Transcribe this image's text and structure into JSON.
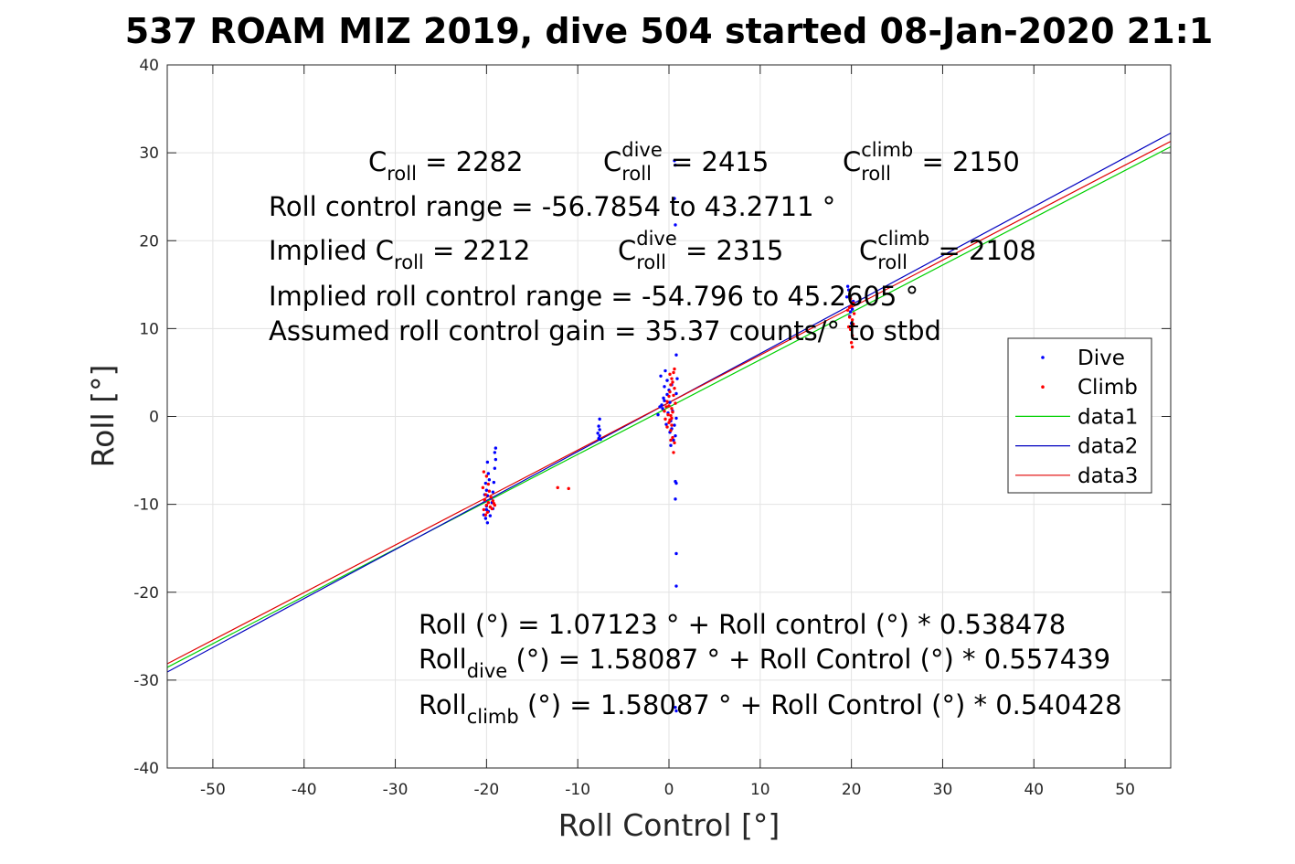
{
  "chart_data": {
    "type": "scatter",
    "title": "537 ROAM MIZ 2019, dive 504 started 08-Jan-2020 21:1",
    "xlabel": "Roll Control [°]",
    "ylabel": "Roll [°]",
    "xlim": [
      -55,
      55
    ],
    "ylim": [
      -40,
      40
    ],
    "xticks": [
      -50,
      -40,
      -30,
      -20,
      -10,
      0,
      10,
      20,
      30,
      40,
      50
    ],
    "yticks": [
      -40,
      -30,
      -20,
      -10,
      0,
      10,
      20,
      30,
      40
    ],
    "grid": true,
    "legend_position": "right",
    "series": [
      {
        "name": "Dive",
        "kind": "points",
        "color": "#0000ff",
        "points": [
          [
            -19.9,
            -5.2
          ],
          [
            -19.8,
            -6.5
          ],
          [
            -20.1,
            -7.6
          ],
          [
            -20.0,
            -8.4
          ],
          [
            -19.9,
            -9.0
          ],
          [
            -20.2,
            -9.6
          ],
          [
            -20.0,
            -10.2
          ],
          [
            -19.8,
            -10.8
          ],
          [
            -20.3,
            -11.2
          ],
          [
            -20.1,
            -11.6
          ],
          [
            -19.9,
            -12.1
          ],
          [
            -19.5,
            -9.3
          ],
          [
            -19.3,
            -8.6
          ],
          [
            -19.2,
            -7.5
          ],
          [
            -19.1,
            -5.9
          ],
          [
            -19.0,
            -4.9
          ],
          [
            -19.1,
            -4.1
          ],
          [
            -19.0,
            -3.6
          ],
          [
            -19.3,
            -10.5
          ],
          [
            -19.6,
            -11.3
          ],
          [
            -20.2,
            -8.9
          ],
          [
            -19.7,
            -7.2
          ],
          [
            -20.0,
            -10.6
          ],
          [
            -19.4,
            -9.8
          ],
          [
            -7.6,
            -0.3
          ],
          [
            -7.7,
            -1.1
          ],
          [
            -7.6,
            -1.5
          ],
          [
            -7.8,
            -1.9
          ],
          [
            -7.6,
            -2.2
          ],
          [
            -7.7,
            -2.5
          ],
          [
            -7.5,
            -2.6
          ],
          [
            -1.2,
            0.2
          ],
          [
            -0.8,
            1.3
          ],
          [
            -0.6,
            2.1
          ],
          [
            -0.5,
            3.4
          ],
          [
            -0.9,
            4.6
          ],
          [
            -0.4,
            5.2
          ],
          [
            -0.2,
            4.1
          ],
          [
            0.0,
            3.0
          ],
          [
            0.1,
            1.6
          ],
          [
            -0.1,
            0.4
          ],
          [
            0.2,
            -0.5
          ],
          [
            0.3,
            -1.4
          ],
          [
            0.5,
            -2.7
          ],
          [
            0.2,
            -3.3
          ],
          [
            0.7,
            -2.2
          ],
          [
            0.8,
            7.0
          ],
          [
            0.9,
            4.3
          ],
          [
            0.8,
            2.6
          ],
          [
            0.8,
            -0.2
          ],
          [
            0.7,
            -7.4
          ],
          [
            0.8,
            -7.6
          ],
          [
            0.7,
            -9.4
          ],
          [
            0.8,
            -15.6
          ],
          [
            0.8,
            -19.3
          ],
          [
            0.7,
            21.8
          ],
          [
            0.6,
            24.8
          ],
          [
            0.7,
            28.6
          ],
          [
            0.6,
            29.1
          ],
          [
            0.8,
            -33.5
          ],
          [
            0.7,
            -33.1
          ],
          [
            -0.3,
            -0.9
          ],
          [
            -0.7,
            0.9
          ],
          [
            -0.2,
            2.5
          ],
          [
            0.1,
            -1.8
          ],
          [
            0.4,
            0.6
          ],
          [
            -0.5,
            1.8
          ],
          [
            0.3,
            3.6
          ],
          [
            -1.0,
            1.1
          ],
          [
            0.6,
            -1.0
          ],
          [
            19.5,
            13.6
          ],
          [
            19.7,
            14.4
          ],
          [
            19.6,
            14.8
          ],
          [
            20.1,
            12.2
          ],
          [
            19.8,
            11.4
          ],
          [
            20.2,
            13.1
          ],
          [
            20.0,
            10.6
          ],
          [
            19.9,
            11.9
          ]
        ]
      },
      {
        "name": "Climb",
        "kind": "points",
        "color": "#ff0000",
        "points": [
          [
            -20.3,
            -6.3
          ],
          [
            -20.0,
            -6.8
          ],
          [
            -19.8,
            -7.7
          ],
          [
            -20.4,
            -8.1
          ],
          [
            -19.7,
            -8.5
          ],
          [
            -20.1,
            -8.9
          ],
          [
            -19.5,
            -9.2
          ],
          [
            -20.2,
            -9.5
          ],
          [
            -19.8,
            -9.8
          ],
          [
            -20.0,
            -10.1
          ],
          [
            -19.6,
            -10.3
          ],
          [
            -20.3,
            -10.6
          ],
          [
            -19.9,
            -10.9
          ],
          [
            -20.1,
            -11.2
          ],
          [
            -19.3,
            -9.6
          ],
          [
            -19.1,
            -10.1
          ],
          [
            -19.4,
            -10.5
          ],
          [
            -19.2,
            -9.9
          ],
          [
            -12.2,
            -8.1
          ],
          [
            -11.0,
            -8.2
          ],
          [
            -0.5,
            0.6
          ],
          [
            -0.3,
            1.1
          ],
          [
            -0.2,
            1.7
          ],
          [
            0.0,
            2.3
          ],
          [
            0.1,
            2.8
          ],
          [
            0.2,
            3.6
          ],
          [
            0.3,
            4.3
          ],
          [
            0.5,
            5.0
          ],
          [
            0.4,
            3.9
          ],
          [
            0.6,
            3.2
          ],
          [
            -0.1,
            0.2
          ],
          [
            0.1,
            -0.4
          ],
          [
            0.3,
            -1.0
          ],
          [
            0.2,
            -1.6
          ],
          [
            0.0,
            -0.7
          ],
          [
            0.4,
            -2.4
          ],
          [
            0.6,
            -3.0
          ],
          [
            0.5,
            -4.1
          ],
          [
            0.2,
            -2.7
          ],
          [
            -0.4,
            -0.3
          ],
          [
            0.3,
            0.9
          ],
          [
            0.7,
            1.5
          ],
          [
            0.5,
            2.4
          ],
          [
            -0.2,
            -1.2
          ],
          [
            0.1,
            4.8
          ],
          [
            0.6,
            5.4
          ],
          [
            0.2,
            0.1
          ],
          [
            0.4,
            0.5
          ],
          [
            0.0,
            1.2
          ],
          [
            0.3,
            -0.2
          ],
          [
            19.6,
            12.1
          ],
          [
            19.8,
            11.3
          ],
          [
            20.0,
            12.6
          ],
          [
            20.2,
            10.5
          ],
          [
            19.9,
            9.9
          ],
          [
            20.1,
            9.2
          ],
          [
            20.0,
            8.4
          ],
          [
            20.1,
            7.9
          ],
          [
            19.7,
            10.2
          ],
          [
            20.3,
            11.7
          ],
          [
            20.2,
            12.9
          ],
          [
            19.9,
            13.4
          ],
          [
            20.1,
            11.0
          ],
          [
            19.8,
            12.4
          ]
        ]
      },
      {
        "name": "data1",
        "kind": "line",
        "color": "#00d000",
        "points": [
          [
            -55,
            -28.55
          ],
          [
            55,
            30.69
          ]
        ]
      },
      {
        "name": "data2",
        "kind": "line",
        "color": "#0000c0",
        "points": [
          [
            -55,
            -29.08
          ],
          [
            55,
            32.24
          ]
        ]
      },
      {
        "name": "data3",
        "kind": "line",
        "color": "#e00000",
        "points": [
          [
            -55,
            -28.14
          ],
          [
            55,
            31.3
          ]
        ]
      }
    ],
    "annotations": [
      {
        "id": "a1",
        "parts": [
          {
            "t": "C"
          },
          {
            "t": "roll",
            "sub": true
          },
          {
            "t": " = 2282"
          }
        ]
      },
      {
        "id": "a2",
        "parts": [
          {
            "t": "C"
          },
          {
            "t": "dive",
            "sup": true
          },
          {
            "t": "roll",
            "sub": true
          },
          {
            "t": " = 2415"
          }
        ]
      },
      {
        "id": "a3",
        "parts": [
          {
            "t": "C"
          },
          {
            "t": "climb",
            "sup": true
          },
          {
            "t": "roll",
            "sub": true
          },
          {
            "t": " = 2150"
          }
        ]
      },
      {
        "id": "a4",
        "parts": [
          {
            "t": "Roll control range = -56.7854 to 43.2711 °"
          }
        ]
      },
      {
        "id": "a5",
        "parts": [
          {
            "t": "Implied C"
          },
          {
            "t": "roll",
            "sub": true
          },
          {
            "t": " = 2212"
          }
        ]
      },
      {
        "id": "a6",
        "parts": [
          {
            "t": "C"
          },
          {
            "t": "dive",
            "sup": true
          },
          {
            "t": "roll",
            "sub": true
          },
          {
            "t": " = 2315"
          }
        ]
      },
      {
        "id": "a7",
        "parts": [
          {
            "t": "C"
          },
          {
            "t": "climb",
            "sup": true
          },
          {
            "t": "roll",
            "sub": true
          },
          {
            "t": " = 2108"
          }
        ]
      },
      {
        "id": "a8",
        "parts": [
          {
            "t": "Implied roll control range = -54.796 to 45.2605 °"
          }
        ]
      },
      {
        "id": "a9",
        "parts": [
          {
            "t": "Assumed roll control gain = 35.37 counts/° to stbd"
          }
        ]
      },
      {
        "id": "a10",
        "parts": [
          {
            "t": "Roll (°) = 1.07123 ° + Roll control (°) * 0.538478"
          }
        ]
      },
      {
        "id": "a11",
        "parts": [
          {
            "t": "Roll"
          },
          {
            "t": "dive",
            "sub": true
          },
          {
            "t": " (°) = 1.58087 ° + Roll Control (°) * 0.557439"
          }
        ]
      },
      {
        "id": "a12",
        "parts": [
          {
            "t": "Roll"
          },
          {
            "t": "climb",
            "sub": true
          },
          {
            "t": " (°) = 1.58087 ° + Roll Control (°) * 0.540428"
          }
        ]
      }
    ]
  }
}
